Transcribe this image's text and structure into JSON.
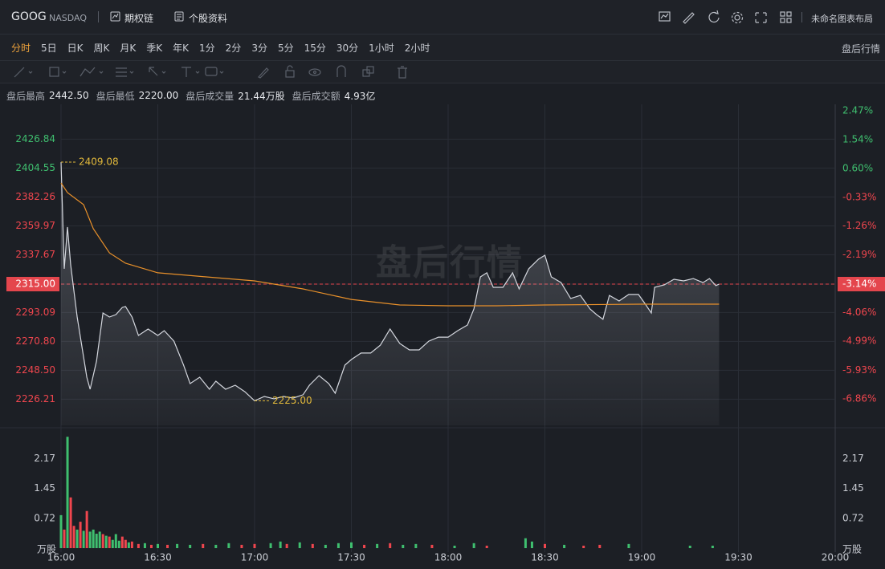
{
  "header": {
    "symbol": "GOOG",
    "exchange": "NASDAQ",
    "links": [
      "期权链",
      "个股资料"
    ],
    "layout_name": "未命名图表布局"
  },
  "periods": {
    "items": [
      "分时",
      "5日",
      "日K",
      "周K",
      "月K",
      "季K",
      "年K",
      "1分",
      "2分",
      "3分",
      "5分",
      "15分",
      "30分",
      "1小时",
      "2小时"
    ],
    "active": 0,
    "right_label": "盘后行情"
  },
  "stats": [
    {
      "label": "盘后最高",
      "value": "2442.50"
    },
    {
      "label": "盘后最低",
      "value": "2220.00"
    },
    {
      "label": "盘后成交量",
      "value": "21.44万股"
    },
    {
      "label": "盘后成交额",
      "value": "4.93亿"
    }
  ],
  "chart_data": {
    "type": "line",
    "watermark": "盘后行情",
    "up_color": "#3fbf6f",
    "down_color": "#f0464e",
    "xlim": [
      "16:00",
      "20:00"
    ],
    "xticks": [
      "16:00",
      "16:30",
      "17:00",
      "17:30",
      "18:00",
      "18:30",
      "19:00",
      "19:30",
      "20:00"
    ],
    "ylim": [
      2206.03,
      2453.69
    ],
    "yticks": [
      2426.84,
      2404.55,
      2382.26,
      2359.97,
      2337.67,
      {
        "value": 2315,
        "label": "2315.00"
      },
      2293.09,
      {
        "value": 2270.8,
        "label": "2270.80"
      },
      {
        "value": 2248.5,
        "label": "2248.50"
      },
      2226.21
    ],
    "y2lim": [
      -7.711,
      2.677
    ],
    "y2ticks": [
      {
        "value": 2.47,
        "label": "2.47%"
      },
      {
        "value": 1.54,
        "label": "1.54%"
      },
      {
        "value": 0.6,
        "label": "0.60%"
      },
      {
        "value": -0.33,
        "label": "-0.33%"
      },
      {
        "value": -1.26,
        "label": "-1.26%"
      },
      {
        "value": -2.19,
        "label": "-2.19%"
      },
      {
        "value": -3.14,
        "label": "-3.14%"
      },
      {
        "value": -4.06,
        "label": "-4.06%"
      },
      {
        "value": -4.99,
        "label": "-4.99%"
      },
      {
        "value": -5.93,
        "label": "-5.93%"
      },
      {
        "value": -6.86,
        "label": "-6.86%"
      }
    ],
    "reference_line": 2315,
    "grid": true,
    "series": [
      {
        "color": "#d4d7de",
        "area": true,
        "x": [
          "16:00",
          "16:01",
          "16:02",
          "16:03",
          "16:05",
          "16:08",
          "16:09",
          "16:11",
          "16:13",
          "16:15",
          "16:17",
          "16:19",
          "16:20",
          "16:22",
          "16:24",
          "16:27",
          "16:30",
          "16:32",
          "16:35",
          "16:38",
          "16:40",
          "16:43",
          "16:46",
          "16:48",
          "16:51",
          "16:54",
          "16:57",
          "17:00",
          "17:03",
          "17:06",
          "17:09",
          "17:12",
          "17:15",
          "17:17",
          "17:20",
          "17:23",
          "17:25",
          "17:28",
          "17:30",
          "17:33",
          "17:36",
          "17:39",
          "17:42",
          "17:45",
          "17:48",
          "17:51",
          "17:54",
          "17:57",
          "18:00",
          "18:03",
          "18:06",
          "18:08",
          "18:10",
          "18:12",
          "18:14",
          "18:17",
          "18:20",
          "18:22",
          "18:25",
          "18:28",
          "18:30",
          "18:32",
          "18:35",
          "18:38",
          "18:41",
          "18:44",
          "18:46",
          "18:48",
          "18:50",
          "18:53",
          "18:56",
          "18:59",
          "19:01",
          "19:03",
          "19:04",
          "19:07",
          "19:10",
          "19:13",
          "19:16",
          "19:19",
          "19:21",
          "19:23",
          "19:24"
        ],
        "values": [
          2409.08,
          2326.8,
          2359.0,
          2329.9,
          2289.6,
          2243.2,
          2233.9,
          2255.6,
          2292.7,
          2289.6,
          2291.5,
          2297.0,
          2297.7,
          2289.6,
          2275.4,
          2280.3,
          2275.4,
          2279.1,
          2271.0,
          2252.5,
          2238.2,
          2243.2,
          2233.9,
          2240.1,
          2233.9,
          2237.0,
          2232.0,
          2225.0,
          2228.3,
          2226.5,
          2228.3,
          2227.1,
          2229.6,
          2237.0,
          2244.4,
          2238.2,
          2230.8,
          2252.5,
          2256.8,
          2261.8,
          2261.8,
          2267.9,
          2280.3,
          2269.2,
          2264.2,
          2264.2,
          2271.0,
          2274.1,
          2274.1,
          2279.1,
          2283.4,
          2295.8,
          2320.6,
          2323.7,
          2312.5,
          2312.5,
          2323.7,
          2311.3,
          2326.8,
          2334.2,
          2337.3,
          2320.6,
          2316.2,
          2303.9,
          2306.3,
          2295.8,
          2291.5,
          2287.8,
          2306.3,
          2302.0,
          2307.0,
          2307.0,
          2300.1,
          2292.7,
          2312.5,
          2314.4,
          2318.7,
          2317.5,
          2319.3,
          2316.2,
          2319.3,
          2313.8,
          2315.0
        ]
      },
      {
        "color": "#e8902a",
        "x": [
          "16:00",
          "16:02",
          "16:07",
          "16:10",
          "16:15",
          "16:20",
          "16:30",
          "16:45",
          "17:00",
          "17:15",
          "17:30",
          "17:45",
          "18:00",
          "18:15",
          "18:30",
          "19:00",
          "19:24"
        ],
        "values": [
          2393.0,
          2385.6,
          2376.3,
          2357.7,
          2339.1,
          2331.1,
          2323.7,
          2320.6,
          2317.5,
          2311.3,
          2303.2,
          2298.9,
          2298.3,
          2298.3,
          2298.9,
          2299.5,
          2299.5
        ]
      }
    ],
    "annotations": [
      {
        "x": "16:00",
        "value": 2409.08,
        "label": "2409.08"
      },
      {
        "x": "17:00",
        "value": 2225,
        "label": "2225.00"
      }
    ],
    "volume": {
      "unit": "万股",
      "ylim": [
        0,
        2.88
      ],
      "yticks": [
        2.17,
        1.45,
        0.72
      ],
      "x": [
        "16:00",
        "16:01",
        "16:02",
        "16:03",
        "16:04",
        "16:05",
        "16:06",
        "16:07",
        "16:08",
        "16:09",
        "16:10",
        "16:11",
        "16:12",
        "16:13",
        "16:14",
        "16:15",
        "16:16",
        "16:17",
        "16:18",
        "16:19",
        "16:20",
        "16:21",
        "16:22",
        "16:24",
        "16:26",
        "16:28",
        "16:30",
        "16:33",
        "16:36",
        "16:40",
        "16:44",
        "16:48",
        "16:52",
        "16:56",
        "17:00",
        "17:05",
        "17:08",
        "17:10",
        "17:14",
        "17:18",
        "17:22",
        "17:26",
        "17:30",
        "17:34",
        "17:38",
        "17:42",
        "17:46",
        "17:50",
        "17:55",
        "18:02",
        "18:08",
        "18:12",
        "18:24",
        "18:26",
        "18:30",
        "18:36",
        "18:42",
        "18:47",
        "18:56",
        "19:15",
        "19:22"
      ],
      "values": [
        0.8,
        0.45,
        2.7,
        1.23,
        0.54,
        0.45,
        0.64,
        0.42,
        0.9,
        0.4,
        0.45,
        0.35,
        0.4,
        0.34,
        0.3,
        0.28,
        0.2,
        0.34,
        0.18,
        0.28,
        0.2,
        0.14,
        0.16,
        0.1,
        0.12,
        0.08,
        0.1,
        0.08,
        0.1,
        0.08,
        0.1,
        0.08,
        0.12,
        0.08,
        0.1,
        0.12,
        0.16,
        0.1,
        0.14,
        0.1,
        0.08,
        0.12,
        0.14,
        0.08,
        0.1,
        0.12,
        0.08,
        0.1,
        0.08,
        0.06,
        0.12,
        0.06,
        0.24,
        0.16,
        0.1,
        0.08,
        0.06,
        0.08,
        0.1,
        0.06,
        0.06
      ],
      "colors": [
        "#3fbf6f",
        "#f0464e",
        "#3fbf6f",
        "#f0464e",
        "#f0464e",
        "#3fbf6f",
        "#f0464e",
        "#3fbf6f",
        "#f0464e",
        "#3fbf6f",
        "#3fbf6f",
        "#3fbf6f",
        "#3fbf6f",
        "#f0464e",
        "#3fbf6f",
        "#f0464e",
        "#3fbf6f",
        "#3fbf6f",
        "#3fbf6f",
        "#f0464e",
        "#f0464e",
        "#3fbf6f",
        "#f0464e",
        "#f0464e",
        "#3fbf6f",
        "#f0464e",
        "#3fbf6f",
        "#f0464e",
        "#3fbf6f",
        "#3fbf6f",
        "#f0464e",
        "#3fbf6f",
        "#3fbf6f",
        "#f0464e",
        "#f0464e",
        "#3fbf6f",
        "#3fbf6f",
        "#f0464e",
        "#3fbf6f",
        "#f0464e",
        "#3fbf6f",
        "#3fbf6f",
        "#3fbf6f",
        "#f0464e",
        "#3fbf6f",
        "#f0464e",
        "#3fbf6f",
        "#3fbf6f",
        "#f0464e",
        "#3fbf6f",
        "#3fbf6f",
        "#f0464e",
        "#3fbf6f",
        "#3fbf6f",
        "#f0464e",
        "#3fbf6f",
        "#f0464e",
        "#f0464e",
        "#3fbf6f",
        "#3fbf6f",
        "#3fbf6f"
      ]
    }
  }
}
